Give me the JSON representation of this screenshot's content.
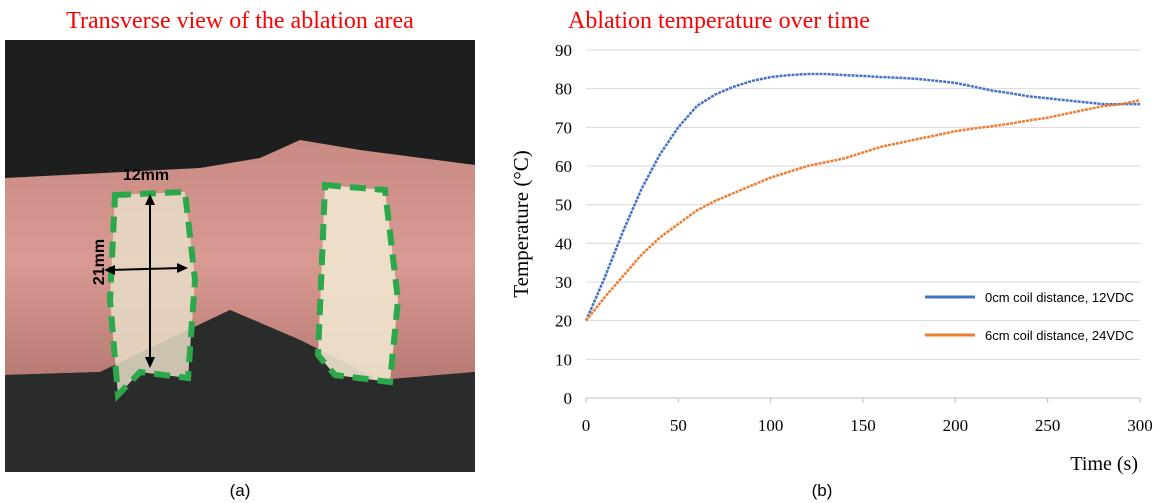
{
  "photo": {
    "title": "Transverse view of the ablation area",
    "width_label": "12mm",
    "height_label": "21mm"
  },
  "captions": [
    "(a)",
    "(b)"
  ],
  "chart_data": {
    "type": "line",
    "title": "Ablation temperature over time",
    "xlabel": "Time (s)",
    "ylabel": "Temperature (°C)",
    "x": [
      0,
      10,
      20,
      30,
      40,
      50,
      60,
      70,
      80,
      90,
      100,
      110,
      120,
      130,
      140,
      150,
      160,
      170,
      180,
      190,
      200,
      210,
      220,
      230,
      240,
      250,
      260,
      270,
      280,
      290,
      300
    ],
    "series": [
      {
        "name": "0cm coil distance, 12VDC",
        "color": "#4472c4",
        "values": [
          20,
          31,
          43,
          54,
          63,
          70,
          75.5,
          78.5,
          80.5,
          82,
          83,
          83.5,
          83.8,
          83.8,
          83.5,
          83.3,
          83,
          82.8,
          82.5,
          82,
          81.5,
          80.5,
          79.5,
          78.8,
          78,
          77.5,
          77,
          76.5,
          76,
          76,
          76
        ]
      },
      {
        "name": "6cm coil distance, 24VDC",
        "color": "#ed7d31",
        "values": [
          20,
          26,
          31.5,
          37,
          41.5,
          45,
          48.5,
          51,
          53,
          55,
          57,
          58.5,
          60,
          61,
          62,
          63.5,
          65,
          66,
          67,
          68,
          69,
          69.7,
          70.3,
          71,
          71.8,
          72.5,
          73.5,
          74.5,
          75.5,
          76,
          77
        ]
      }
    ],
    "xlim": [
      0,
      300
    ],
    "xticks": [
      0,
      50,
      100,
      150,
      200,
      250,
      300
    ],
    "ylim": [
      0,
      90
    ],
    "yticks": [
      0,
      10,
      20,
      30,
      40,
      50,
      60,
      70,
      80,
      90
    ],
    "grid": true,
    "legend": "right"
  }
}
